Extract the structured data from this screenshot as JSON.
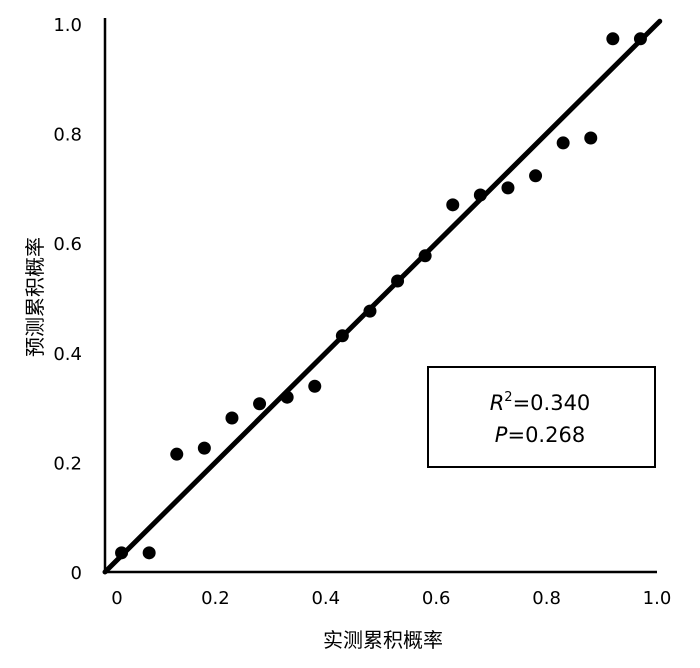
{
  "chart_data": {
    "type": "scatter",
    "title": "",
    "xlabel": "实测累积概率",
    "ylabel": "预测累积概率",
    "xlim": [
      0,
      1.0
    ],
    "ylim": [
      0,
      1.0
    ],
    "xticks": [
      "0",
      "0.2",
      "0.4",
      "0.6",
      "0.8",
      "1.0"
    ],
    "yticks": [
      "0",
      "0.2",
      "0.4",
      "0.6",
      "0.8",
      "1.0"
    ],
    "grid": false,
    "points": [
      [
        0.03,
        0.035
      ],
      [
        0.08,
        0.035
      ],
      [
        0.13,
        0.215
      ],
      [
        0.18,
        0.226
      ],
      [
        0.23,
        0.281
      ],
      [
        0.28,
        0.307
      ],
      [
        0.33,
        0.319
      ],
      [
        0.38,
        0.339
      ],
      [
        0.43,
        0.431
      ],
      [
        0.48,
        0.476
      ],
      [
        0.53,
        0.531
      ],
      [
        0.58,
        0.577
      ],
      [
        0.63,
        0.67
      ],
      [
        0.68,
        0.688
      ],
      [
        0.73,
        0.701
      ],
      [
        0.78,
        0.723
      ],
      [
        0.83,
        0.783
      ],
      [
        0.88,
        0.792
      ],
      [
        0.92,
        0.973
      ],
      [
        0.97,
        0.973
      ]
    ],
    "reference_line": {
      "slope": 1,
      "intercept": 0
    },
    "annotation": {
      "r2_label": "R",
      "r2_sup": "2",
      "r2_value": "=0.340",
      "p_label": "P",
      "p_value": "=0.268",
      "placement": "lower-right"
    }
  }
}
